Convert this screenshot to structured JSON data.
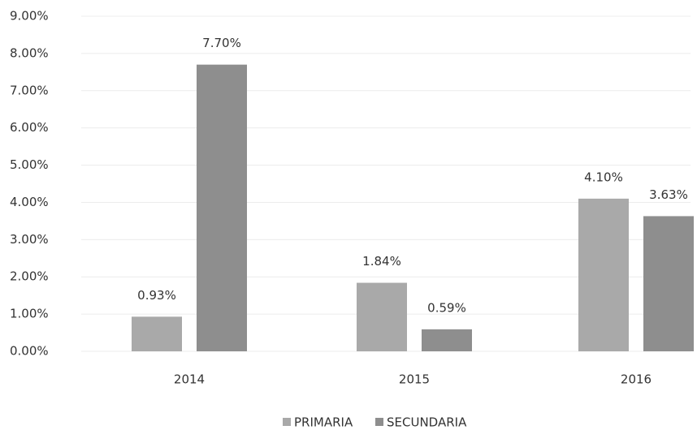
{
  "chart_data": {
    "type": "bar",
    "categories": [
      "2014",
      "2015",
      "2016"
    ],
    "series": [
      {
        "name": "PRIMARIA",
        "color": "#a9a9a9",
        "values": [
          0.93,
          1.84,
          4.1
        ],
        "value_labels": [
          "0.93%",
          "1.84%",
          "4.10%"
        ]
      },
      {
        "name": "SECUNDARIA",
        "color": "#8e8e8e",
        "values": [
          7.7,
          0.59,
          3.63
        ],
        "value_labels": [
          "7.70%",
          "0.59%",
          "3.63%"
        ]
      }
    ],
    "ylim": [
      0,
      9
    ],
    "yticks": [
      {
        "value": 0,
        "label": "0.00%"
      },
      {
        "value": 1,
        "label": "1.00%"
      },
      {
        "value": 2,
        "label": "2.00%"
      },
      {
        "value": 3,
        "label": "3.00%"
      },
      {
        "value": 4,
        "label": "4.00%"
      },
      {
        "value": 5,
        "label": "5.00%"
      },
      {
        "value": 6,
        "label": "6.00%"
      },
      {
        "value": 7,
        "label": "7.00%"
      },
      {
        "value": 8,
        "label": "8.00%"
      },
      {
        "value": 9,
        "label": "9.00%"
      }
    ],
    "grid": true,
    "legend": "bottom"
  }
}
